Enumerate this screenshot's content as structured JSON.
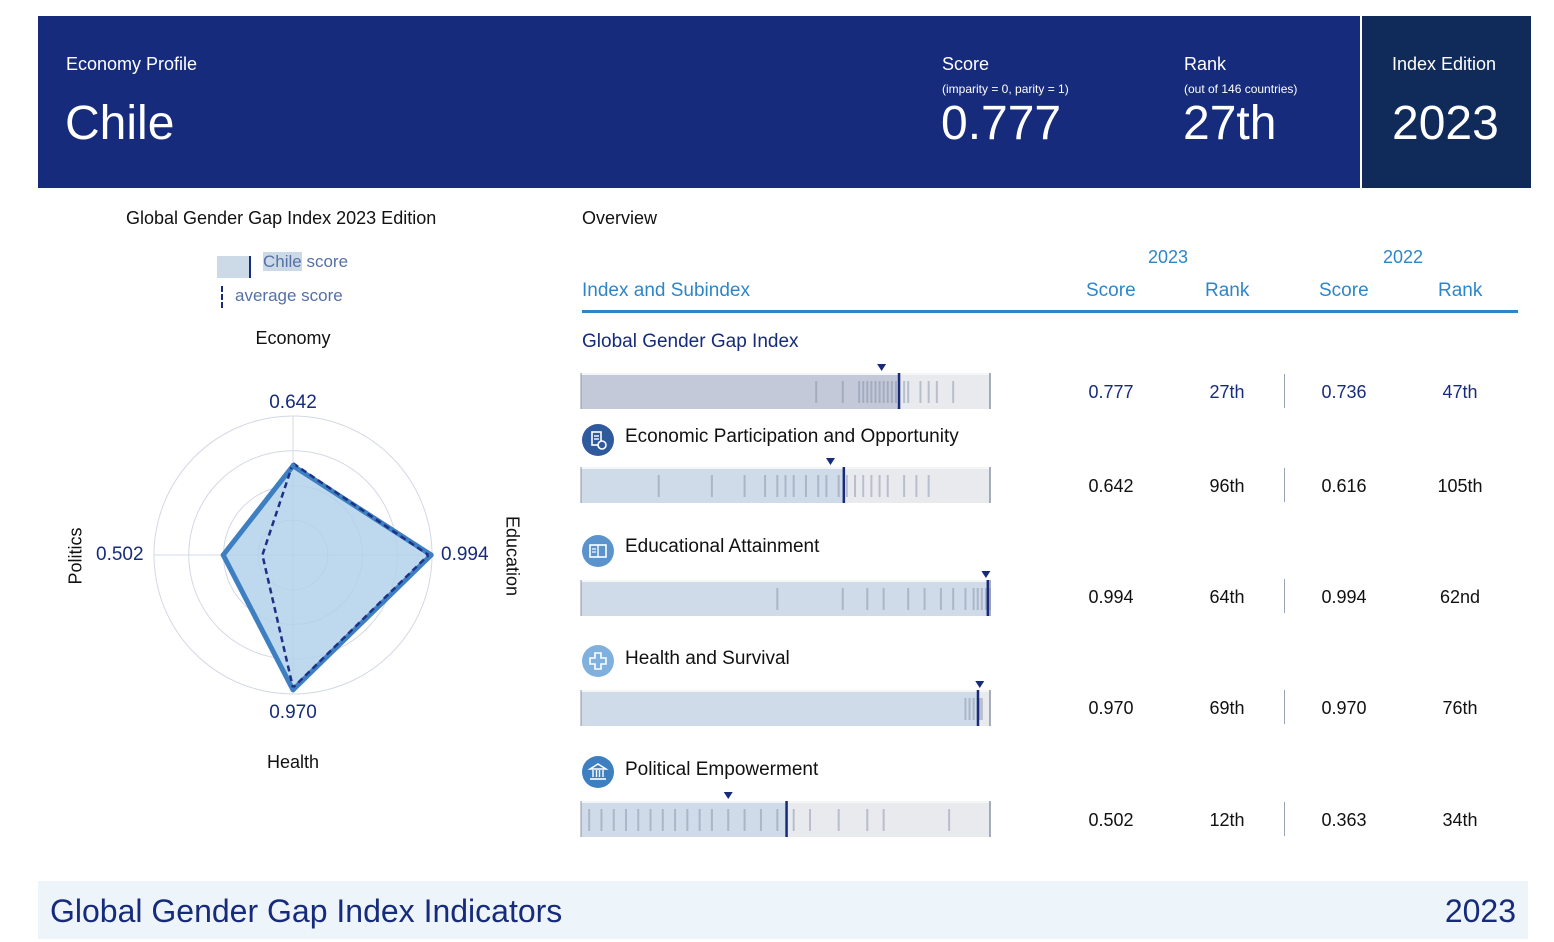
{
  "header": {
    "profile_label": "Economy Profile",
    "country": "Chile",
    "score_label": "Score",
    "score_sub": "(imparity = 0, parity = 1)",
    "score_value": "0.777",
    "rank_label": "Rank",
    "rank_sub": "(out of 146 countries)",
    "rank_value": "27th",
    "edition_label": "Index Edition",
    "edition_value": "2023"
  },
  "left_panel": {
    "title_bold": "Global Gender Gap Index",
    "title_rest": " 2023 Edition",
    "legend_country": "Chile",
    "legend_country_suffix": " score",
    "legend_average": "average score"
  },
  "overview": {
    "title": "Overview",
    "year_current": "2023",
    "year_previous": "2022",
    "col_index": "Index and Subindex",
    "col_score_2023": "Score",
    "col_rank_2023": "Rank",
    "col_score_2022": "Score",
    "col_rank_2022": "Rank"
  },
  "colors": {
    "navy": "#172b7c",
    "accent_blue": "#2e86c8",
    "edition_bg": "#102a5a",
    "radar_fill": "#b3d1ea",
    "radar_line": "#3d7fc1",
    "average_line": "#1d3187"
  },
  "chart_data": [
    {
      "type": "radar",
      "axes": [
        "Economy",
        "Education",
        "Health",
        "Politics"
      ],
      "series": [
        {
          "name": "Chile",
          "values": [
            0.642,
            0.994,
            0.97,
            0.502
          ]
        },
        {
          "name": "average",
          "values": [
            0.66,
            0.975,
            0.955,
            0.22
          ]
        }
      ],
      "value_labels": [
        "0.642",
        "0.994",
        "0.970",
        "0.502"
      ],
      "range": [
        0,
        1
      ]
    },
    {
      "type": "table",
      "rows": [
        {
          "name": "Global Gender Gap Index",
          "icon": "",
          "score_2023": "0.777",
          "rank_2023": "27th",
          "score_2022": "0.736",
          "rank_2022": "47th",
          "value": 0.777,
          "average": 0.735,
          "distribution": [
            0.575,
            0.64,
            0.68,
            0.69,
            0.7,
            0.71,
            0.72,
            0.73,
            0.74,
            0.75,
            0.76,
            0.77,
            0.79,
            0.8,
            0.83,
            0.85,
            0.87,
            0.91
          ]
        },
        {
          "name": "Economic Participation and Opportunity",
          "icon": "economy-icon",
          "score_2023": "0.642",
          "rank_2023": "96th",
          "score_2022": "0.616",
          "rank_2022": "105th",
          "value": 0.642,
          "average": 0.61,
          "distribution": [
            0.19,
            0.32,
            0.4,
            0.45,
            0.48,
            0.5,
            0.52,
            0.55,
            0.58,
            0.6,
            0.63,
            0.65,
            0.67,
            0.69,
            0.71,
            0.73,
            0.75,
            0.79,
            0.82,
            0.85
          ]
        },
        {
          "name": "Educational Attainment",
          "icon": "education-icon",
          "score_2023": "0.994",
          "rank_2023": "64th",
          "score_2022": "0.994",
          "rank_2022": "62nd",
          "value": 0.994,
          "average": 0.99,
          "distribution": [
            0.48,
            0.64,
            0.7,
            0.74,
            0.8,
            0.84,
            0.88,
            0.91,
            0.94,
            0.96,
            0.97,
            0.98,
            0.99,
            1.0
          ]
        },
        {
          "name": "Health and Survival",
          "icon": "health-icon",
          "score_2023": "0.970",
          "rank_2023": "69th",
          "score_2022": "0.970",
          "rank_2022": "76th",
          "value": 0.97,
          "average": 0.975,
          "distribution": [
            0.94,
            0.95,
            0.96,
            0.97,
            0.975,
            0.98
          ]
        },
        {
          "name": "Political Empowerment",
          "icon": "politics-icon",
          "score_2023": "0.502",
          "rank_2023": "12th",
          "score_2022": "0.363",
          "rank_2022": "34th",
          "value": 0.502,
          "average": 0.36,
          "distribution": [
            0.02,
            0.05,
            0.08,
            0.11,
            0.14,
            0.17,
            0.2,
            0.23,
            0.26,
            0.29,
            0.32,
            0.36,
            0.4,
            0.44,
            0.48,
            0.52,
            0.56,
            0.63,
            0.7,
            0.74,
            0.9
          ]
        }
      ]
    }
  ],
  "footer": {
    "title": "Global Gender Gap Index Indicators",
    "year": "2023"
  }
}
